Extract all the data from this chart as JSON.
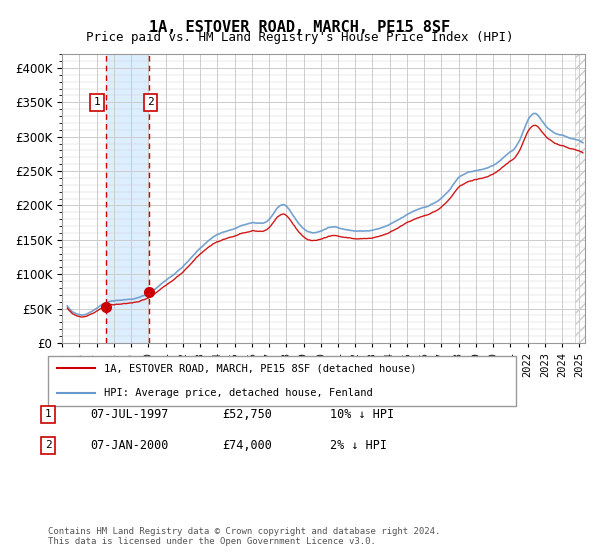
{
  "title": "1A, ESTOVER ROAD, MARCH, PE15 8SF",
  "subtitle": "Price paid vs. HM Land Registry's House Price Index (HPI)",
  "legend_line1": "1A, ESTOVER ROAD, MARCH, PE15 8SF (detached house)",
  "legend_line2": "HPI: Average price, detached house, Fenland",
  "footnote": "Contains HM Land Registry data © Crown copyright and database right 2024.\nThis data is licensed under the Open Government Licence v3.0.",
  "table_rows": [
    {
      "num": "1",
      "date": "07-JUL-1997",
      "price": "£52,750",
      "hpi": "10% ↓ HPI"
    },
    {
      "num": "2",
      "date": "07-JAN-2000",
      "price": "£74,000",
      "hpi": "2% ↓ HPI"
    }
  ],
  "sale1_x": 1997.52,
  "sale1_y": 52750,
  "sale2_x": 2000.03,
  "sale2_y": 74000,
  "vline1_x": 1997.52,
  "vline2_x": 2000.03,
  "shade_x1": 1997.52,
  "shade_x2": 2000.03,
  "hatch_x": 2024.75,
  "ylim": [
    0,
    420000
  ],
  "xlim_left": 1995.3,
  "xlim_right": 2025.3,
  "color_red": "#cc0000",
  "color_blue": "#6699cc",
  "color_shade": "#ddeeff",
  "color_hatch": "#cccccc",
  "color_grid": "#cccccc",
  "background_color": "#ffffff"
}
